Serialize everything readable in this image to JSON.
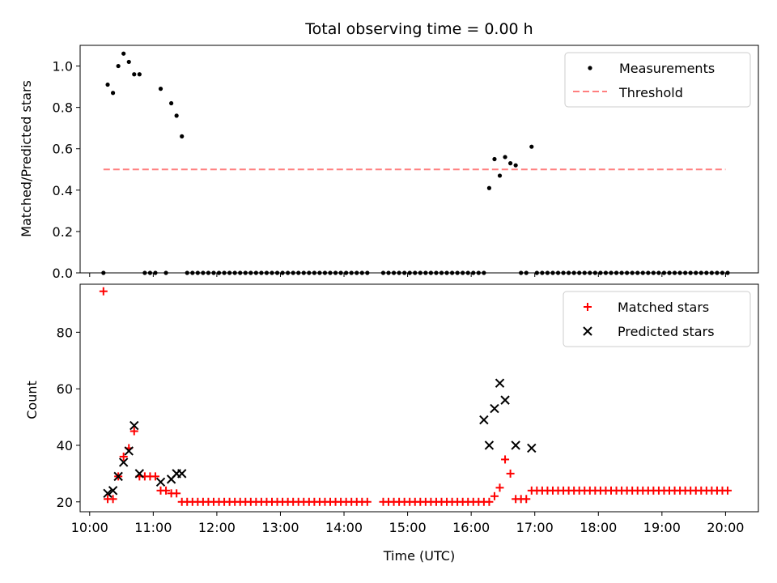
{
  "chart_data": [
    {
      "type": "scatter",
      "title": "Total observing time = 0.00 h",
      "xlabel": "",
      "ylabel": "Matched/Predicted stars",
      "ylim": [
        0,
        1.1
      ],
      "yticks": [
        0.0,
        0.2,
        0.4,
        0.6,
        0.8,
        1.0
      ],
      "ytick_labels": [
        "0.0",
        "0.2",
        "0.4",
        "0.6",
        "0.8",
        "1.0"
      ],
      "xlim": [
        "09:51",
        "20:31"
      ],
      "legend_position": "top-right",
      "threshold": {
        "name": "Threshold",
        "value": 0.5,
        "x_range": [
          "10:13",
          "20:00"
        ],
        "color": "#ff7f7f"
      },
      "series": [
        {
          "name": "Measurements",
          "color": "#000000",
          "points": [
            [
              "10:13",
              0
            ],
            [
              "10:17",
              0.91
            ],
            [
              "10:22",
              0.87
            ],
            [
              "10:27",
              1.0
            ],
            [
              "10:32",
              1.06
            ],
            [
              "10:37",
              1.02
            ],
            [
              "10:42",
              0.96
            ],
            [
              "10:47",
              0.96
            ],
            [
              "10:52",
              0
            ],
            [
              "10:57",
              0
            ],
            [
              "11:02",
              0
            ],
            [
              "11:07",
              0.89
            ],
            [
              "11:12",
              0
            ],
            [
              "11:17",
              0.82
            ],
            [
              "11:22",
              0.76
            ],
            [
              "11:27",
              0.66
            ],
            [
              "11:32",
              0
            ],
            [
              "11:37",
              0
            ],
            [
              "11:42",
              0
            ],
            [
              "11:47",
              0
            ],
            [
              "11:52",
              0
            ],
            [
              "11:57",
              0
            ],
            [
              "12:02",
              0
            ],
            [
              "12:07",
              0
            ],
            [
              "12:12",
              0
            ],
            [
              "12:17",
              0
            ],
            [
              "12:22",
              0
            ],
            [
              "12:27",
              0
            ],
            [
              "12:32",
              0
            ],
            [
              "12:37",
              0
            ],
            [
              "12:42",
              0
            ],
            [
              "12:47",
              0
            ],
            [
              "12:52",
              0
            ],
            [
              "12:57",
              0
            ],
            [
              "13:02",
              0
            ],
            [
              "13:07",
              0
            ],
            [
              "13:12",
              0
            ],
            [
              "13:17",
              0
            ],
            [
              "13:22",
              0
            ],
            [
              "13:27",
              0
            ],
            [
              "13:32",
              0
            ],
            [
              "13:37",
              0
            ],
            [
              "13:42",
              0
            ],
            [
              "13:47",
              0
            ],
            [
              "13:52",
              0
            ],
            [
              "13:57",
              0
            ],
            [
              "14:02",
              0
            ],
            [
              "14:07",
              0
            ],
            [
              "14:12",
              0
            ],
            [
              "14:17",
              0
            ],
            [
              "14:22",
              0
            ],
            [
              "14:37",
              0
            ],
            [
              "14:42",
              0
            ],
            [
              "14:47",
              0
            ],
            [
              "14:52",
              0
            ],
            [
              "14:57",
              0
            ],
            [
              "15:02",
              0
            ],
            [
              "15:07",
              0
            ],
            [
              "15:12",
              0
            ],
            [
              "15:17",
              0
            ],
            [
              "15:22",
              0
            ],
            [
              "15:27",
              0
            ],
            [
              "15:32",
              0
            ],
            [
              "15:37",
              0
            ],
            [
              "15:42",
              0
            ],
            [
              "15:47",
              0
            ],
            [
              "15:52",
              0
            ],
            [
              "15:57",
              0
            ],
            [
              "16:02",
              0
            ],
            [
              "16:07",
              0
            ],
            [
              "16:12",
              0
            ],
            [
              "16:17",
              0.41
            ],
            [
              "16:22",
              0.55
            ],
            [
              "16:27",
              0.47
            ],
            [
              "16:32",
              0.56
            ],
            [
              "16:37",
              0.53
            ],
            [
              "16:42",
              0.52
            ],
            [
              "16:47",
              0
            ],
            [
              "16:52",
              0
            ],
            [
              "16:57",
              0.61
            ],
            [
              "17:02",
              0
            ],
            [
              "17:07",
              0
            ],
            [
              "17:12",
              0
            ],
            [
              "17:17",
              0
            ],
            [
              "17:22",
              0
            ],
            [
              "17:27",
              0
            ],
            [
              "17:32",
              0
            ],
            [
              "17:37",
              0
            ],
            [
              "17:42",
              0
            ],
            [
              "17:47",
              0
            ],
            [
              "17:52",
              0
            ],
            [
              "17:57",
              0
            ],
            [
              "18:02",
              0
            ],
            [
              "18:07",
              0
            ],
            [
              "18:12",
              0
            ],
            [
              "18:17",
              0
            ],
            [
              "18:22",
              0
            ],
            [
              "18:27",
              0
            ],
            [
              "18:32",
              0
            ],
            [
              "18:37",
              0
            ],
            [
              "18:42",
              0
            ],
            [
              "18:47",
              0
            ],
            [
              "18:52",
              0
            ],
            [
              "18:57",
              0
            ],
            [
              "19:02",
              0
            ],
            [
              "19:07",
              0
            ],
            [
              "19:12",
              0
            ],
            [
              "19:17",
              0
            ],
            [
              "19:22",
              0
            ],
            [
              "19:27",
              0
            ],
            [
              "19:32",
              0
            ],
            [
              "19:37",
              0
            ],
            [
              "19:42",
              0
            ],
            [
              "19:47",
              0
            ],
            [
              "19:52",
              0
            ],
            [
              "19:57",
              0
            ],
            [
              "20:02",
              0
            ]
          ]
        }
      ]
    },
    {
      "type": "scatter",
      "title": "",
      "xlabel": "Time (UTC)",
      "ylabel": "Count",
      "ylim": [
        16.5,
        97
      ],
      "yticks": [
        20,
        40,
        60,
        80
      ],
      "ytick_labels": [
        "20",
        "40",
        "60",
        "80"
      ],
      "xlim": [
        "09:51",
        "20:31"
      ],
      "xticks": [
        "10:00",
        "11:00",
        "12:00",
        "13:00",
        "14:00",
        "15:00",
        "16:00",
        "17:00",
        "18:00",
        "19:00",
        "20:00"
      ],
      "legend_position": "top-right",
      "series": [
        {
          "name": "Matched stars",
          "color": "#ff0000",
          "marker": "plus",
          "points": [
            [
              "10:13",
              94.5
            ],
            [
              "10:17",
              21
            ],
            [
              "10:22",
              21
            ],
            [
              "10:27",
              29
            ],
            [
              "10:32",
              36
            ],
            [
              "10:37",
              39
            ],
            [
              "10:42",
              45
            ],
            [
              "10:47",
              29
            ],
            [
              "10:52",
              29
            ],
            [
              "10:57",
              29
            ],
            [
              "11:02",
              29
            ],
            [
              "11:07",
              24
            ],
            [
              "11:12",
              24
            ],
            [
              "11:17",
              23
            ],
            [
              "11:22",
              23
            ],
            [
              "11:27",
              20
            ],
            [
              "11:32",
              20
            ],
            [
              "11:37",
              20
            ],
            [
              "11:42",
              20
            ],
            [
              "11:47",
              20
            ],
            [
              "11:52",
              20
            ],
            [
              "11:57",
              20
            ],
            [
              "12:02",
              20
            ],
            [
              "12:07",
              20
            ],
            [
              "12:12",
              20
            ],
            [
              "12:17",
              20
            ],
            [
              "12:22",
              20
            ],
            [
              "12:27",
              20
            ],
            [
              "12:32",
              20
            ],
            [
              "12:37",
              20
            ],
            [
              "12:42",
              20
            ],
            [
              "12:47",
              20
            ],
            [
              "12:52",
              20
            ],
            [
              "12:57",
              20
            ],
            [
              "13:02",
              20
            ],
            [
              "13:07",
              20
            ],
            [
              "13:12",
              20
            ],
            [
              "13:17",
              20
            ],
            [
              "13:22",
              20
            ],
            [
              "13:27",
              20
            ],
            [
              "13:32",
              20
            ],
            [
              "13:37",
              20
            ],
            [
              "13:42",
              20
            ],
            [
              "13:47",
              20
            ],
            [
              "13:52",
              20
            ],
            [
              "13:57",
              20
            ],
            [
              "14:02",
              20
            ],
            [
              "14:07",
              20
            ],
            [
              "14:12",
              20
            ],
            [
              "14:17",
              20
            ],
            [
              "14:22",
              20
            ],
            [
              "14:37",
              20
            ],
            [
              "14:42",
              20
            ],
            [
              "14:47",
              20
            ],
            [
              "14:52",
              20
            ],
            [
              "14:57",
              20
            ],
            [
              "15:02",
              20
            ],
            [
              "15:07",
              20
            ],
            [
              "15:12",
              20
            ],
            [
              "15:17",
              20
            ],
            [
              "15:22",
              20
            ],
            [
              "15:27",
              20
            ],
            [
              "15:32",
              20
            ],
            [
              "15:37",
              20
            ],
            [
              "15:42",
              20
            ],
            [
              "15:47",
              20
            ],
            [
              "15:52",
              20
            ],
            [
              "15:57",
              20
            ],
            [
              "16:02",
              20
            ],
            [
              "16:07",
              20
            ],
            [
              "16:12",
              20
            ],
            [
              "16:17",
              20
            ],
            [
              "16:22",
              22
            ],
            [
              "16:27",
              25
            ],
            [
              "16:32",
              35
            ],
            [
              "16:37",
              30
            ],
            [
              "16:42",
              21
            ],
            [
              "16:47",
              21
            ],
            [
              "16:52",
              21
            ],
            [
              "16:57",
              24
            ],
            [
              "17:02",
              24
            ],
            [
              "17:07",
              24
            ],
            [
              "17:12",
              24
            ],
            [
              "17:17",
              24
            ],
            [
              "17:22",
              24
            ],
            [
              "17:27",
              24
            ],
            [
              "17:32",
              24
            ],
            [
              "17:37",
              24
            ],
            [
              "17:42",
              24
            ],
            [
              "17:47",
              24
            ],
            [
              "17:52",
              24
            ],
            [
              "17:57",
              24
            ],
            [
              "18:02",
              24
            ],
            [
              "18:07",
              24
            ],
            [
              "18:12",
              24
            ],
            [
              "18:17",
              24
            ],
            [
              "18:22",
              24
            ],
            [
              "18:27",
              24
            ],
            [
              "18:32",
              24
            ],
            [
              "18:37",
              24
            ],
            [
              "18:42",
              24
            ],
            [
              "18:47",
              24
            ],
            [
              "18:52",
              24
            ],
            [
              "18:57",
              24
            ],
            [
              "19:02",
              24
            ],
            [
              "19:07",
              24
            ],
            [
              "19:12",
              24
            ],
            [
              "19:17",
              24
            ],
            [
              "19:22",
              24
            ],
            [
              "19:27",
              24
            ],
            [
              "19:32",
              24
            ],
            [
              "19:37",
              24
            ],
            [
              "19:42",
              24
            ],
            [
              "19:47",
              24
            ],
            [
              "19:52",
              24
            ],
            [
              "19:57",
              24
            ],
            [
              "20:02",
              24
            ]
          ]
        },
        {
          "name": "Predicted stars",
          "color": "#000000",
          "marker": "x",
          "points": [
            [
              "10:17",
              23
            ],
            [
              "10:22",
              24
            ],
            [
              "10:27",
              29
            ],
            [
              "10:32",
              34
            ],
            [
              "10:37",
              38
            ],
            [
              "10:42",
              47
            ],
            [
              "10:47",
              30
            ],
            [
              "11:07",
              27
            ],
            [
              "11:17",
              28
            ],
            [
              "11:22",
              30
            ],
            [
              "11:27",
              30
            ],
            [
              "16:12",
              49
            ],
            [
              "16:17",
              40
            ],
            [
              "16:22",
              53
            ],
            [
              "16:27",
              62
            ],
            [
              "16:32",
              56
            ],
            [
              "16:42",
              40
            ],
            [
              "16:57",
              39
            ]
          ]
        }
      ]
    }
  ]
}
